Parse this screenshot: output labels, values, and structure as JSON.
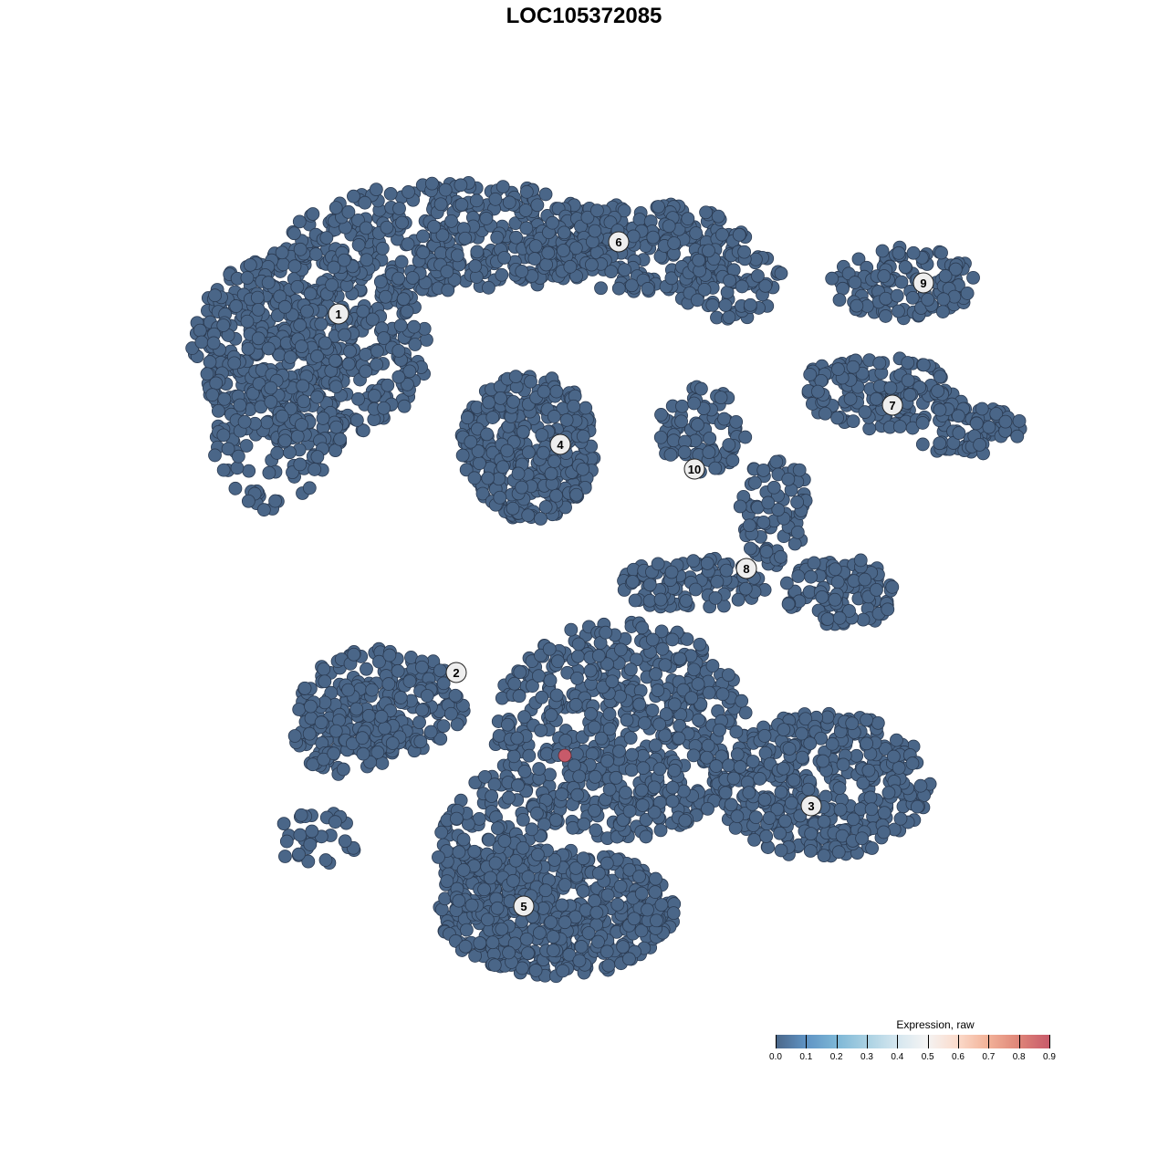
{
  "chart_data": {
    "type": "scatter",
    "title": "LOC105372085",
    "xlabel": "",
    "ylabel": "",
    "grid": false,
    "axes_visible": false,
    "point_color_default": "#4a6688",
    "point_color_high": "#c85a6a",
    "clusters": [
      "1",
      "2",
      "3",
      "4",
      "5",
      "6",
      "7",
      "8",
      "9",
      "10"
    ],
    "expression": {
      "typical_value": 0.0,
      "max_value": 0.9,
      "cells_expressing": 1
    },
    "colorbar": {
      "title": "Expression, raw",
      "ticks": [
        "0.0",
        "0.1",
        "0.2",
        "0.3",
        "0.4",
        "0.5",
        "0.6",
        "0.7",
        "0.8",
        "0.9"
      ],
      "range": [
        0,
        0.9
      ],
      "colors": [
        "#4a6688",
        "#f4f4f4",
        "#c85a6a"
      ],
      "placement": "bottom-right"
    }
  }
}
